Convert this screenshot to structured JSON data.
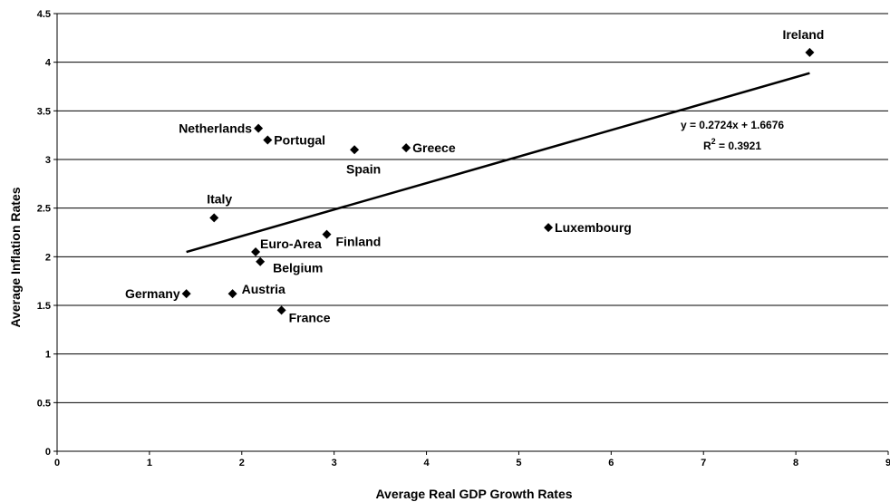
{
  "chart_data": {
    "type": "scatter",
    "xlabel": "Average Real GDP Growth Rates",
    "ylabel": "Average Inflation Rates",
    "xlim": [
      0,
      9
    ],
    "ylim": [
      0,
      4.5
    ],
    "x_ticks": [
      "0",
      "1",
      "2",
      "3",
      "4",
      "5",
      "6",
      "7",
      "8",
      "9"
    ],
    "y_ticks": [
      "0",
      "0.5",
      "1",
      "1.5",
      "2",
      "2.5",
      "3",
      "3.5",
      "4",
      "4.5"
    ],
    "grid": "horizontal",
    "marker": "diamond",
    "points": [
      {
        "label": "Ireland",
        "x": 8.15,
        "y": 4.1
      },
      {
        "label": "Netherlands",
        "x": 2.18,
        "y": 3.32
      },
      {
        "label": "Portugal",
        "x": 2.28,
        "y": 3.2
      },
      {
        "label": "Spain",
        "x": 3.22,
        "y": 3.1
      },
      {
        "label": "Greece",
        "x": 3.78,
        "y": 3.12
      },
      {
        "label": "Italy",
        "x": 1.7,
        "y": 2.4
      },
      {
        "label": "Luxembourg",
        "x": 5.32,
        "y": 2.3
      },
      {
        "label": "Finland",
        "x": 2.92,
        "y": 2.23
      },
      {
        "label": "Euro-Area",
        "x": 2.15,
        "y": 2.05
      },
      {
        "label": "Belgium",
        "x": 2.2,
        "y": 1.95
      },
      {
        "label": "Germany",
        "x": 1.4,
        "y": 1.62
      },
      {
        "label": "Austria",
        "x": 1.9,
        "y": 1.62
      },
      {
        "label": "France",
        "x": 2.43,
        "y": 1.45
      }
    ],
    "trendline": {
      "slope": 0.2724,
      "intercept": 1.6676,
      "x_start": 1.4,
      "x_end": 8.15,
      "equation": "y = 0.2724x + 1.6676",
      "r2_prefix": "R",
      "r2_sup": "2",
      "r2_value": " = 0.3921"
    }
  }
}
